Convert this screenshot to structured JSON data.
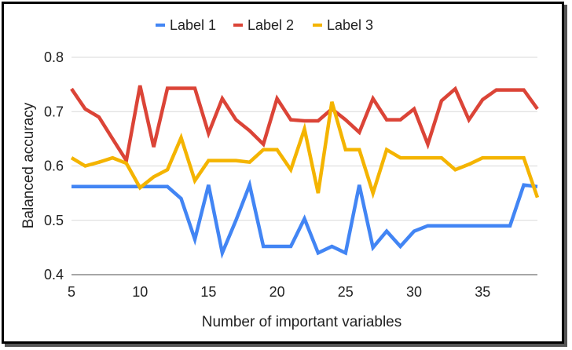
{
  "chart_data": {
    "type": "line",
    "title": "",
    "xlabel": "Number of important variables",
    "ylabel": "Balanced accuracy",
    "xlim": [
      5,
      39
    ],
    "ylim": [
      0.4,
      0.8
    ],
    "xticks": [
      5,
      10,
      15,
      20,
      25,
      30,
      35
    ],
    "yticks": [
      0.4,
      0.5,
      0.6,
      0.7,
      0.8
    ],
    "grid": "horizontal",
    "legend_position": "top",
    "x": [
      5,
      6,
      7,
      8,
      9,
      10,
      11,
      12,
      13,
      14,
      15,
      16,
      17,
      18,
      19,
      20,
      21,
      22,
      23,
      24,
      25,
      26,
      27,
      28,
      29,
      30,
      31,
      32,
      33,
      34,
      35,
      36,
      37,
      38,
      39
    ],
    "series": [
      {
        "name": "Label 1",
        "color": "#4285f4",
        "values": [
          0.562,
          0.562,
          0.562,
          0.562,
          0.562,
          0.562,
          0.562,
          0.562,
          0.54,
          0.465,
          0.565,
          0.44,
          0.5,
          0.565,
          0.452,
          0.452,
          0.452,
          0.503,
          0.44,
          0.452,
          0.44,
          0.565,
          0.45,
          0.48,
          0.452,
          0.48,
          0.49,
          0.49,
          0.49,
          0.49,
          0.49,
          0.49,
          0.49,
          0.565,
          0.562
        ]
      },
      {
        "name": "Label 2",
        "color": "#db4437",
        "values": [
          0.742,
          0.705,
          0.69,
          0.65,
          0.61,
          0.748,
          0.635,
          0.743,
          0.743,
          0.743,
          0.66,
          0.724,
          0.685,
          0.665,
          0.64,
          0.724,
          0.685,
          0.683,
          0.683,
          0.705,
          0.685,
          0.662,
          0.724,
          0.685,
          0.685,
          0.705,
          0.64,
          0.72,
          0.742,
          0.685,
          0.722,
          0.74,
          0.74,
          0.74,
          0.705
        ]
      },
      {
        "name": "Label 3",
        "color": "#f4b400",
        "values": [
          0.615,
          0.6,
          0.607,
          0.615,
          0.605,
          0.56,
          0.58,
          0.593,
          0.652,
          0.573,
          0.61,
          0.61,
          0.61,
          0.607,
          0.63,
          0.63,
          0.593,
          0.668,
          0.55,
          0.718,
          0.63,
          0.63,
          0.55,
          0.63,
          0.615,
          0.615,
          0.615,
          0.615,
          0.593,
          0.603,
          0.615,
          0.615,
          0.615,
          0.615,
          0.542
        ]
      }
    ]
  }
}
